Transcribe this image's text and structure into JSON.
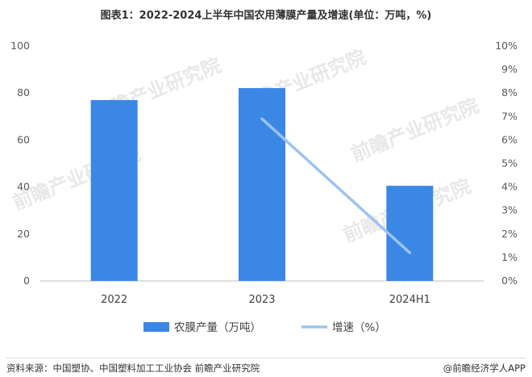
{
  "chart_data": {
    "type": "bar",
    "title": "图表1：2022-2024上半年中国农用薄膜产量及增速(单位：万吨，%)",
    "categories": [
      "2022",
      "2023",
      "2024H1"
    ],
    "series": [
      {
        "name": "农膜产量（万吨）",
        "type": "bar",
        "axis": "left",
        "color": "#3a87e6",
        "values": [
          77.0,
          82.1,
          40.5
        ]
      },
      {
        "name": "增速（%）",
        "type": "line",
        "axis": "right",
        "color": "#9cc3f2",
        "values": [
          null,
          6.9,
          1.2
        ]
      }
    ],
    "ylim": [
      0,
      100
    ],
    "y_ticks": [
      "0",
      "20",
      "40",
      "60",
      "80",
      "100"
    ],
    "y2lim": [
      0,
      10
    ],
    "y2_ticks": [
      "0%",
      "1%",
      "2%",
      "3%",
      "4%",
      "5%",
      "6%",
      "7%",
      "8%",
      "9%",
      "10%"
    ],
    "grid": false,
    "legend_position": "bottom"
  },
  "watermark": "前瞻产业研究院",
  "footer": {
    "source": "资料来源：中国塑协、中国塑料加工工业协会 前瞻产业研究院",
    "brand": "@前瞻经济学人APP"
  }
}
